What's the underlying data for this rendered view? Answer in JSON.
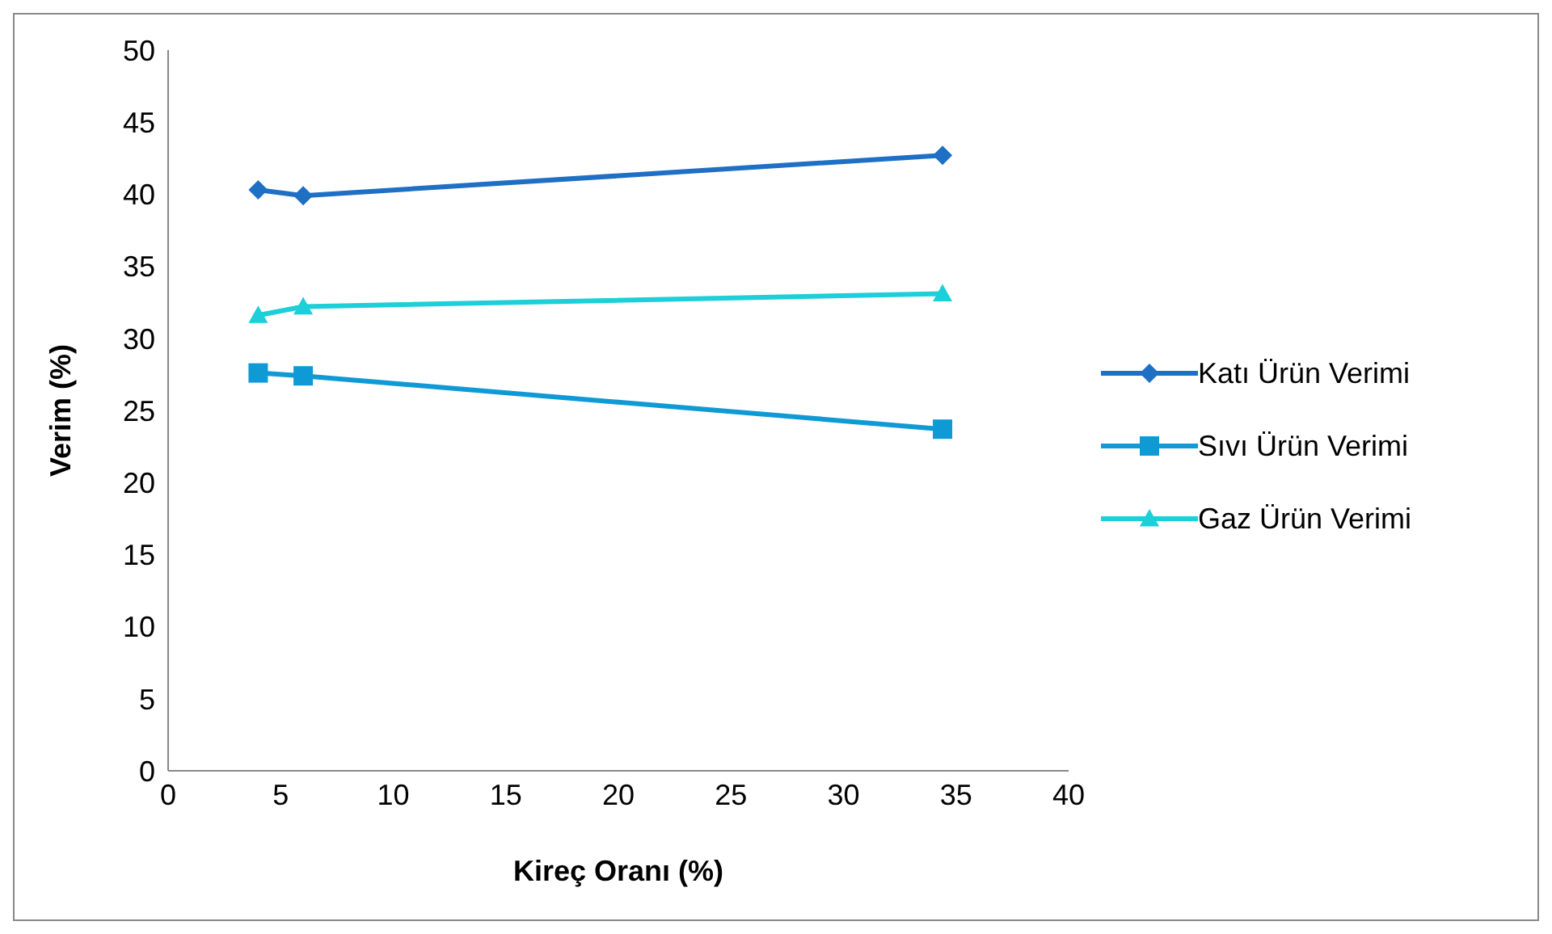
{
  "chart_data": {
    "type": "line",
    "xlabel": "Kireç Oranı  (%)",
    "ylabel": "Verim   (%)",
    "x": [
      4,
      6,
      34.4
    ],
    "series": [
      {
        "name": "Katı Ürün Verimi",
        "color": "#1f6fc5",
        "marker": "diamond",
        "values": [
          40.3,
          39.9,
          42.7
        ]
      },
      {
        "name": "Sıvı Ürün Verimi",
        "color": "#0f9ad6",
        "marker": "square",
        "values": [
          27.6,
          27.4,
          23.7
        ]
      },
      {
        "name": "Gaz Ürün Verimi",
        "color": "#1ccfd8",
        "marker": "triangle",
        "values": [
          31.6,
          32.2,
          33.1
        ]
      }
    ],
    "xlim": [
      0,
      40
    ],
    "xticks": [
      0,
      5,
      10,
      15,
      20,
      25,
      30,
      35,
      40
    ],
    "ylim": [
      0,
      50
    ],
    "yticks": [
      0,
      5,
      10,
      15,
      20,
      25,
      30,
      35,
      40,
      45,
      50
    ],
    "grid": false,
    "legend": "right",
    "line_style": "solid"
  }
}
